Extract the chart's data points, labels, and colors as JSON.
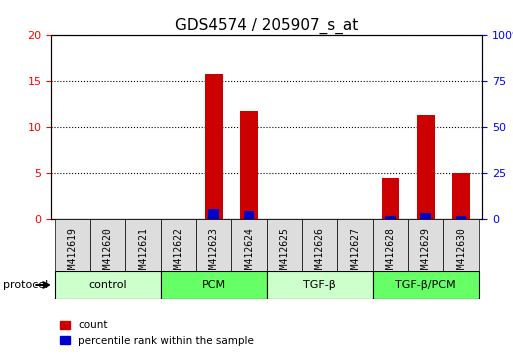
{
  "title": "GDS4574 / 205907_s_at",
  "samples": [
    "GSM412619",
    "GSM412620",
    "GSM412621",
    "GSM412622",
    "GSM412623",
    "GSM412624",
    "GSM412625",
    "GSM412626",
    "GSM412627",
    "GSM412628",
    "GSM412629",
    "GSM412630"
  ],
  "count_values": [
    0,
    0,
    0,
    0,
    15.8,
    11.8,
    0,
    0,
    0,
    4.5,
    11.3,
    5.0
  ],
  "percentile_values": [
    0,
    0,
    0,
    0,
    5.8,
    4.4,
    0,
    0,
    0,
    1.8,
    3.4,
    2.1
  ],
  "groups": [
    {
      "label": "control",
      "start": 0,
      "end": 3,
      "color": "#ccffcc"
    },
    {
      "label": "PCM",
      "start": 3,
      "end": 5,
      "color": "#66ff66"
    },
    {
      "label": "TGF-β",
      "start": 6,
      "end": 8,
      "color": "#ccffcc"
    },
    {
      "label": "TGF-β/PCM",
      "start": 9,
      "end": 11,
      "color": "#66ff66"
    }
  ],
  "ylim_left": [
    0,
    20
  ],
  "ylim_right": [
    0,
    100
  ],
  "yticks_left": [
    0,
    5,
    10,
    15,
    20
  ],
  "yticks_right": [
    0,
    25,
    50,
    75,
    100
  ],
  "bar_color_count": "#cc0000",
  "bar_color_pct": "#0000cc",
  "bar_width": 0.5,
  "bg_color": "#ffffff",
  "tick_label_area_color": "#dddddd",
  "group_label_y": "protocol",
  "legend_count": "count",
  "legend_pct": "percentile rank within the sample",
  "title_fontsize": 11,
  "axis_label_fontsize": 8,
  "tick_fontsize": 7
}
